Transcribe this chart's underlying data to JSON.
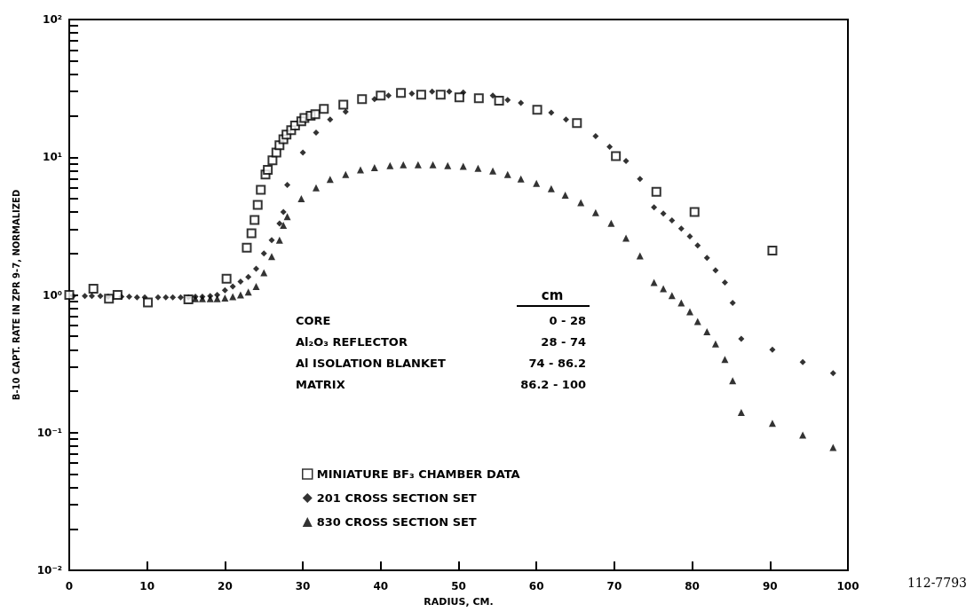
{
  "chart_data": {
    "type": "scatter",
    "xlabel": "RADIUS, CM.",
    "ylabel": "B-10 CAPT. RATE IN ZPR 9-7, NORMALIZED",
    "log": "y",
    "grid": false,
    "legend": "bottom",
    "xlim": [
      0,
      100
    ],
    "xticks": [
      0,
      10,
      20,
      30,
      40,
      50,
      60,
      70,
      80,
      90,
      100
    ],
    "ylim": [
      0.01,
      100
    ],
    "yticks": [
      {
        "value": 0.01,
        "label": "10⁻²"
      },
      {
        "value": 0.02,
        "label": null
      },
      {
        "value": 0.03,
        "label": null
      },
      {
        "value": 0.04,
        "label": null
      },
      {
        "value": 0.05,
        "label": null
      },
      {
        "value": 0.06,
        "label": null
      },
      {
        "value": 0.07,
        "label": null
      },
      {
        "value": 0.08,
        "label": null
      },
      {
        "value": 0.09,
        "label": null
      },
      {
        "value": 0.1,
        "label": "10⁻¹"
      },
      {
        "value": 0.2,
        "label": null
      },
      {
        "value": 0.3,
        "label": null
      },
      {
        "value": 0.4,
        "label": null
      },
      {
        "value": 0.5,
        "label": null
      },
      {
        "value": 0.6,
        "label": null
      },
      {
        "value": 0.7,
        "label": null
      },
      {
        "value": 0.8,
        "label": null
      },
      {
        "value": 0.9,
        "label": null
      },
      {
        "value": 1,
        "label": "10⁰"
      },
      {
        "value": 2,
        "label": null
      },
      {
        "value": 3,
        "label": null
      },
      {
        "value": 4,
        "label": null
      },
      {
        "value": 5,
        "label": null
      },
      {
        "value": 6,
        "label": null
      },
      {
        "value": 7,
        "label": null
      },
      {
        "value": 8,
        "label": null
      },
      {
        "value": 9,
        "label": null
      },
      {
        "value": 10,
        "label": "10¹"
      },
      {
        "value": 20,
        "label": null
      },
      {
        "value": 30,
        "label": null
      },
      {
        "value": 40,
        "label": null
      },
      {
        "value": 50,
        "label": null
      },
      {
        "value": 60,
        "label": null
      },
      {
        "value": 70,
        "label": null
      },
      {
        "value": 80,
        "label": null
      },
      {
        "value": 90,
        "label": null
      },
      {
        "value": 100,
        "label": "10²"
      }
    ],
    "annotations": [
      "cm",
      "CORE",
      "0 - 28",
      "Al₂O₃ REFLECTOR",
      "28 - 74",
      "Al ISOLATION BLANKET",
      "74 - 86.2",
      "MATRIX",
      "86.2 - 100",
      "112-7793"
    ],
    "series": [
      {
        "name": "MINIATURE BF₃ CHAMBER DATA",
        "color": "#000000",
        "marker": "square",
        "x": [
          0,
          3.1,
          5.1,
          6.2,
          10.1,
          15.3,
          20.2,
          22.8,
          23.4,
          23.8,
          24.2,
          24.6,
          25.2,
          25.5,
          26.1,
          26.6,
          27,
          27.5,
          27.9,
          28.5,
          29,
          29.8,
          30.2,
          31,
          31.6,
          32.7,
          35.2,
          37.6,
          40,
          42.6,
          45.2,
          47.7,
          50.1,
          52.6,
          55.2,
          60.1,
          65.2,
          70.2,
          75.4,
          80.3,
          90.3
        ],
        "values": [
          1,
          1.11,
          0.94,
          1,
          0.88,
          0.93,
          1.31,
          2.2,
          2.8,
          3.5,
          4.5,
          5.8,
          7.5,
          8.1,
          9.5,
          10.8,
          12.2,
          13.5,
          14.6,
          15.7,
          17,
          18.2,
          19.3,
          20,
          20.5,
          22.4,
          24.1,
          26.4,
          28,
          29.3,
          28.4,
          28.4,
          27.2,
          26.8,
          25.7,
          22.1,
          17.7,
          10.2,
          5.6,
          4,
          2.1
        ]
      },
      {
        "name": "201 CROSS SECTION SET",
        "color": "#000000",
        "marker": "diamond",
        "x": [
          0.5,
          2,
          2.9,
          4,
          5,
          6.7,
          7.7,
          8.7,
          9.7,
          11.4,
          12.4,
          13.3,
          14.3,
          15.3,
          16.2,
          17.1,
          18.1,
          19,
          20,
          21,
          22,
          23,
          24,
          25,
          26,
          27,
          27.5,
          28,
          30,
          31.7,
          33.5,
          35.5,
          39.2,
          41,
          44,
          46.6,
          48.8,
          50.6,
          54.4,
          56.3,
          58,
          61.9,
          63.8,
          67.6,
          69.4,
          71.5,
          73.3,
          75.1,
          76.3,
          77.4,
          78.6,
          79.7,
          80.7,
          81.9,
          83,
          84.2,
          85.2,
          86.3,
          90.3,
          94.2,
          98.1
        ],
        "values": [
          0.98,
          0.98,
          0.98,
          0.98,
          0.97,
          0.97,
          0.97,
          0.96,
          0.96,
          0.96,
          0.96,
          0.96,
          0.96,
          0.96,
          0.97,
          0.97,
          0.98,
          1.0,
          1.08,
          1.15,
          1.25,
          1.35,
          1.55,
          2,
          2.5,
          3.3,
          4,
          6.3,
          10.8,
          15.1,
          18.8,
          21.4,
          26.4,
          28,
          29,
          30,
          30,
          29.5,
          28,
          26,
          24.8,
          21.1,
          18.8,
          14.2,
          11.9,
          9.4,
          6.95,
          4.33,
          3.9,
          3.47,
          3.03,
          2.66,
          2.29,
          1.86,
          1.51,
          1.23,
          0.875,
          0.48,
          0.4,
          0.325,
          0.27
        ]
      },
      {
        "name": "830 CROSS SECTION SET",
        "color": "#000000",
        "marker": "triangle",
        "x": [
          16.2,
          17.1,
          18.1,
          19,
          20,
          21,
          22,
          23,
          24,
          25,
          26,
          27,
          27.5,
          28,
          29.8,
          31.7,
          33.5,
          35.5,
          37.4,
          39.2,
          41.2,
          42.9,
          44.8,
          46.7,
          48.6,
          50.6,
          52.5,
          54.4,
          56.3,
          58,
          60,
          61.9,
          63.7,
          65.7,
          67.6,
          69.6,
          71.5,
          73.3,
          75.1,
          76.3,
          77.4,
          78.6,
          79.7,
          80.7,
          81.9,
          83,
          84.2,
          85.2,
          86.3,
          90.3,
          94.2,
          98.1
        ],
        "values": [
          0.94,
          0.94,
          0.94,
          0.94,
          0.95,
          0.97,
          1.0,
          1.05,
          1.15,
          1.45,
          1.9,
          2.5,
          3.2,
          3.7,
          5,
          6,
          6.9,
          7.5,
          8.1,
          8.4,
          8.7,
          8.8,
          8.8,
          8.8,
          8.7,
          8.6,
          8.3,
          7.95,
          7.5,
          6.95,
          6.45,
          5.9,
          5.3,
          4.67,
          3.96,
          3.31,
          2.58,
          1.92,
          1.23,
          1.11,
          0.99,
          0.875,
          0.755,
          0.64,
          0.54,
          0.44,
          0.34,
          0.238,
          0.14,
          0.117,
          0.096,
          0.078
        ]
      }
    ]
  }
}
